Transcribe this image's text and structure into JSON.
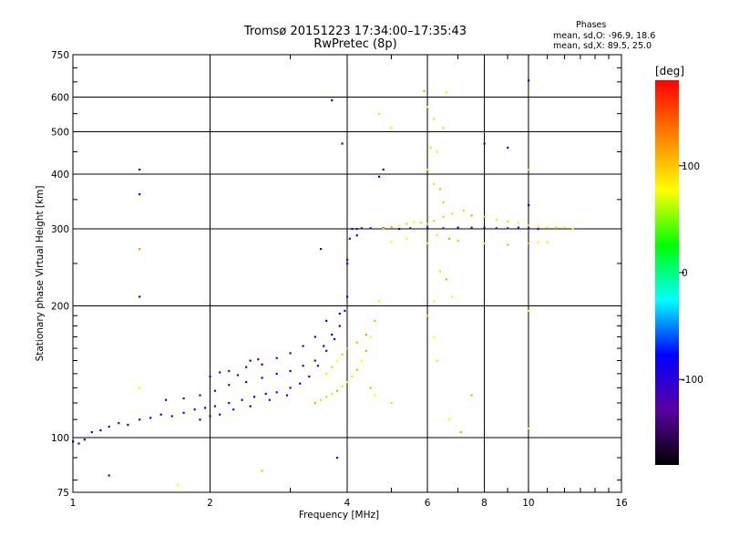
{
  "chart_data": {
    "type": "scatter",
    "title": "Tromsø 20151223 17:34:00–17:35:43",
    "subtitle": "RwPretec (8p)",
    "xlabel": "Frequency [MHz]",
    "ylabel": "Stationary phase Virtual Height [km]",
    "xscale": "log",
    "yscale": "log",
    "xlim": [
      1,
      16
    ],
    "ylim": [
      75,
      750
    ],
    "xticks": [
      1,
      2,
      4,
      6,
      8,
      10,
      16
    ],
    "xtick_labels": [
      "1",
      "2",
      "4",
      "6",
      "8",
      "10",
      "16"
    ],
    "yticks": [
      75,
      100,
      200,
      300,
      400,
      500,
      600,
      750
    ],
    "ytick_labels": [
      "75",
      "100",
      "200",
      "300",
      "400",
      "500",
      "600",
      "750"
    ],
    "grid": true,
    "colorbar": {
      "label": "[deg]",
      "range": [
        -180,
        180
      ],
      "ticks": [
        100,
        0,
        -100
      ],
      "tick_labels": [
        "100",
        "0",
        "-100"
      ],
      "stops": [
        "#000000",
        "#5a00a0",
        "#0000ff",
        "#00ffff",
        "#00ff00",
        "#ffff00",
        "#ff8000",
        "#ff0000"
      ]
    },
    "stats": {
      "heading": "Phases",
      "line1": "mean, sd,O: -96.9, 18.6",
      "line2": "mean, sd,X:  89.5, 25.0"
    },
    "series": [
      {
        "mode": "O",
        "phase_mean": -96.9,
        "points": [
          [
            1.0,
            98
          ],
          [
            1.03,
            97
          ],
          [
            1.06,
            99
          ],
          [
            1.1,
            103
          ],
          [
            1.15,
            104
          ],
          [
            1.2,
            106
          ],
          [
            1.26,
            108
          ],
          [
            1.32,
            107
          ],
          [
            1.4,
            110
          ],
          [
            1.48,
            111
          ],
          [
            1.56,
            113
          ],
          [
            1.65,
            112
          ],
          [
            1.75,
            114
          ],
          [
            1.85,
            116
          ],
          [
            1.95,
            117
          ],
          [
            2.05,
            118
          ],
          [
            2.2,
            120
          ],
          [
            2.35,
            122
          ],
          [
            2.5,
            124
          ],
          [
            2.65,
            126
          ],
          [
            2.8,
            127
          ],
          [
            3.0,
            130
          ],
          [
            3.15,
            133
          ],
          [
            3.3,
            138
          ],
          [
            3.45,
            146
          ],
          [
            3.6,
            158
          ],
          [
            3.75,
            168
          ],
          [
            3.85,
            180
          ],
          [
            3.95,
            195
          ],
          [
            4.0,
            210
          ],
          [
            1.6,
            122
          ],
          [
            1.75,
            123
          ],
          [
            1.9,
            125
          ],
          [
            2.05,
            128
          ],
          [
            2.2,
            132
          ],
          [
            2.4,
            134
          ],
          [
            2.6,
            137
          ],
          [
            2.8,
            140
          ],
          [
            3.0,
            142
          ],
          [
            3.2,
            146
          ],
          [
            3.4,
            150
          ],
          [
            3.55,
            162
          ],
          [
            3.7,
            172
          ],
          [
            3.85,
            192
          ],
          [
            1.9,
            110
          ],
          [
            2.0,
            112
          ],
          [
            2.1,
            113
          ],
          [
            2.25,
            116
          ],
          [
            2.45,
            118
          ],
          [
            2.7,
            122
          ],
          [
            2.95,
            125
          ],
          [
            2.4,
            145
          ],
          [
            2.6,
            147
          ],
          [
            2.8,
            152
          ],
          [
            3.0,
            156
          ],
          [
            3.2,
            162
          ],
          [
            3.4,
            170
          ],
          [
            3.6,
            185
          ],
          [
            2.0,
            138
          ],
          [
            2.1,
            141
          ],
          [
            2.2,
            142
          ],
          [
            2.3,
            139
          ],
          [
            2.45,
            150
          ],
          [
            2.55,
            151
          ],
          [
            4.0,
            255
          ],
          [
            4.05,
            285
          ],
          [
            4.1,
            300
          ],
          [
            4.2,
            300
          ],
          [
            4.3,
            301
          ],
          [
            4.5,
            301
          ],
          [
            4.8,
            301
          ],
          [
            5.2,
            300
          ],
          [
            5.5,
            301
          ],
          [
            6.0,
            302
          ],
          [
            6.5,
            301
          ],
          [
            7.0,
            302
          ],
          [
            7.5,
            302
          ],
          [
            8.0,
            302
          ],
          [
            8.5,
            301
          ],
          [
            9.0,
            301
          ],
          [
            9.5,
            302
          ],
          [
            10.0,
            301
          ],
          [
            10.5,
            300
          ],
          [
            1.4,
            410
          ],
          [
            1.4,
            360
          ],
          [
            1.4,
            210
          ],
          [
            3.5,
            270
          ],
          [
            3.7,
            590
          ],
          [
            3.9,
            470
          ],
          [
            4.0,
            250
          ],
          [
            4.2,
            290
          ],
          [
            3.8,
            90
          ],
          [
            1.2,
            82
          ],
          [
            10.0,
            655
          ],
          [
            10.0,
            340
          ],
          [
            8.0,
            470
          ],
          [
            9.0,
            460
          ],
          [
            4.8,
            410
          ],
          [
            4.7,
            395
          ]
        ]
      },
      {
        "mode": "X",
        "phase_mean": 89.5,
        "points": [
          [
            3.4,
            120
          ],
          [
            3.5,
            122
          ],
          [
            3.6,
            124
          ],
          [
            3.7,
            126
          ],
          [
            3.8,
            128
          ],
          [
            3.9,
            131
          ],
          [
            4.0,
            134
          ],
          [
            4.1,
            138
          ],
          [
            4.2,
            143
          ],
          [
            4.3,
            150
          ],
          [
            4.4,
            158
          ],
          [
            4.5,
            170
          ],
          [
            4.6,
            185
          ],
          [
            4.7,
            205
          ],
          [
            3.6,
            140
          ],
          [
            3.7,
            145
          ],
          [
            3.8,
            150
          ],
          [
            3.9,
            155
          ],
          [
            4.0,
            160
          ],
          [
            4.2,
            165
          ],
          [
            4.4,
            172
          ],
          [
            4.8,
            300
          ],
          [
            5.0,
            303
          ],
          [
            5.2,
            305
          ],
          [
            5.4,
            308
          ],
          [
            5.6,
            311
          ],
          [
            5.8,
            310
          ],
          [
            6.0,
            308
          ],
          [
            6.2,
            313
          ],
          [
            6.5,
            320
          ],
          [
            6.8,
            325
          ],
          [
            7.2,
            330
          ],
          [
            7.5,
            322
          ],
          [
            8.0,
            320
          ],
          [
            8.5,
            315
          ],
          [
            9.0,
            312
          ],
          [
            9.5,
            310
          ],
          [
            10.0,
            306
          ],
          [
            10.5,
            304
          ],
          [
            11.0,
            303
          ],
          [
            11.5,
            302
          ],
          [
            12.0,
            303
          ],
          [
            12.5,
            300
          ],
          [
            5.0,
            280
          ],
          [
            5.4,
            285
          ],
          [
            6.0,
            278
          ],
          [
            6.3,
            290
          ],
          [
            6.7,
            285
          ],
          [
            7.0,
            282
          ],
          [
            8.0,
            278
          ],
          [
            9.0,
            276
          ],
          [
            10.0,
            278
          ],
          [
            10.5,
            279
          ],
          [
            11.0,
            280
          ],
          [
            4.7,
            550
          ],
          [
            5.0,
            510
          ],
          [
            5.9,
            620
          ],
          [
            6.0,
            570
          ],
          [
            6.2,
            535
          ],
          [
            6.5,
            510
          ],
          [
            6.6,
            615
          ],
          [
            6.1,
            460
          ],
          [
            6.3,
            450
          ],
          [
            6.0,
            410
          ],
          [
            6.2,
            380
          ],
          [
            6.4,
            370
          ],
          [
            6.5,
            345
          ],
          [
            6.0,
            190
          ],
          [
            6.2,
            205
          ],
          [
            6.8,
            210
          ],
          [
            6.4,
            240
          ],
          [
            6.6,
            230
          ],
          [
            6.2,
            170
          ],
          [
            6.3,
            150
          ],
          [
            7.5,
            125
          ],
          [
            6.7,
            110
          ],
          [
            7.1,
            103
          ],
          [
            10.0,
            105
          ],
          [
            10.0,
            195
          ],
          [
            10.0,
            410
          ],
          [
            1.4,
            270
          ],
          [
            1.4,
            130
          ],
          [
            2.6,
            84
          ],
          [
            1.7,
            78
          ],
          [
            4.5,
            130
          ],
          [
            4.6,
            125
          ],
          [
            5.0,
            120
          ]
        ]
      }
    ]
  }
}
